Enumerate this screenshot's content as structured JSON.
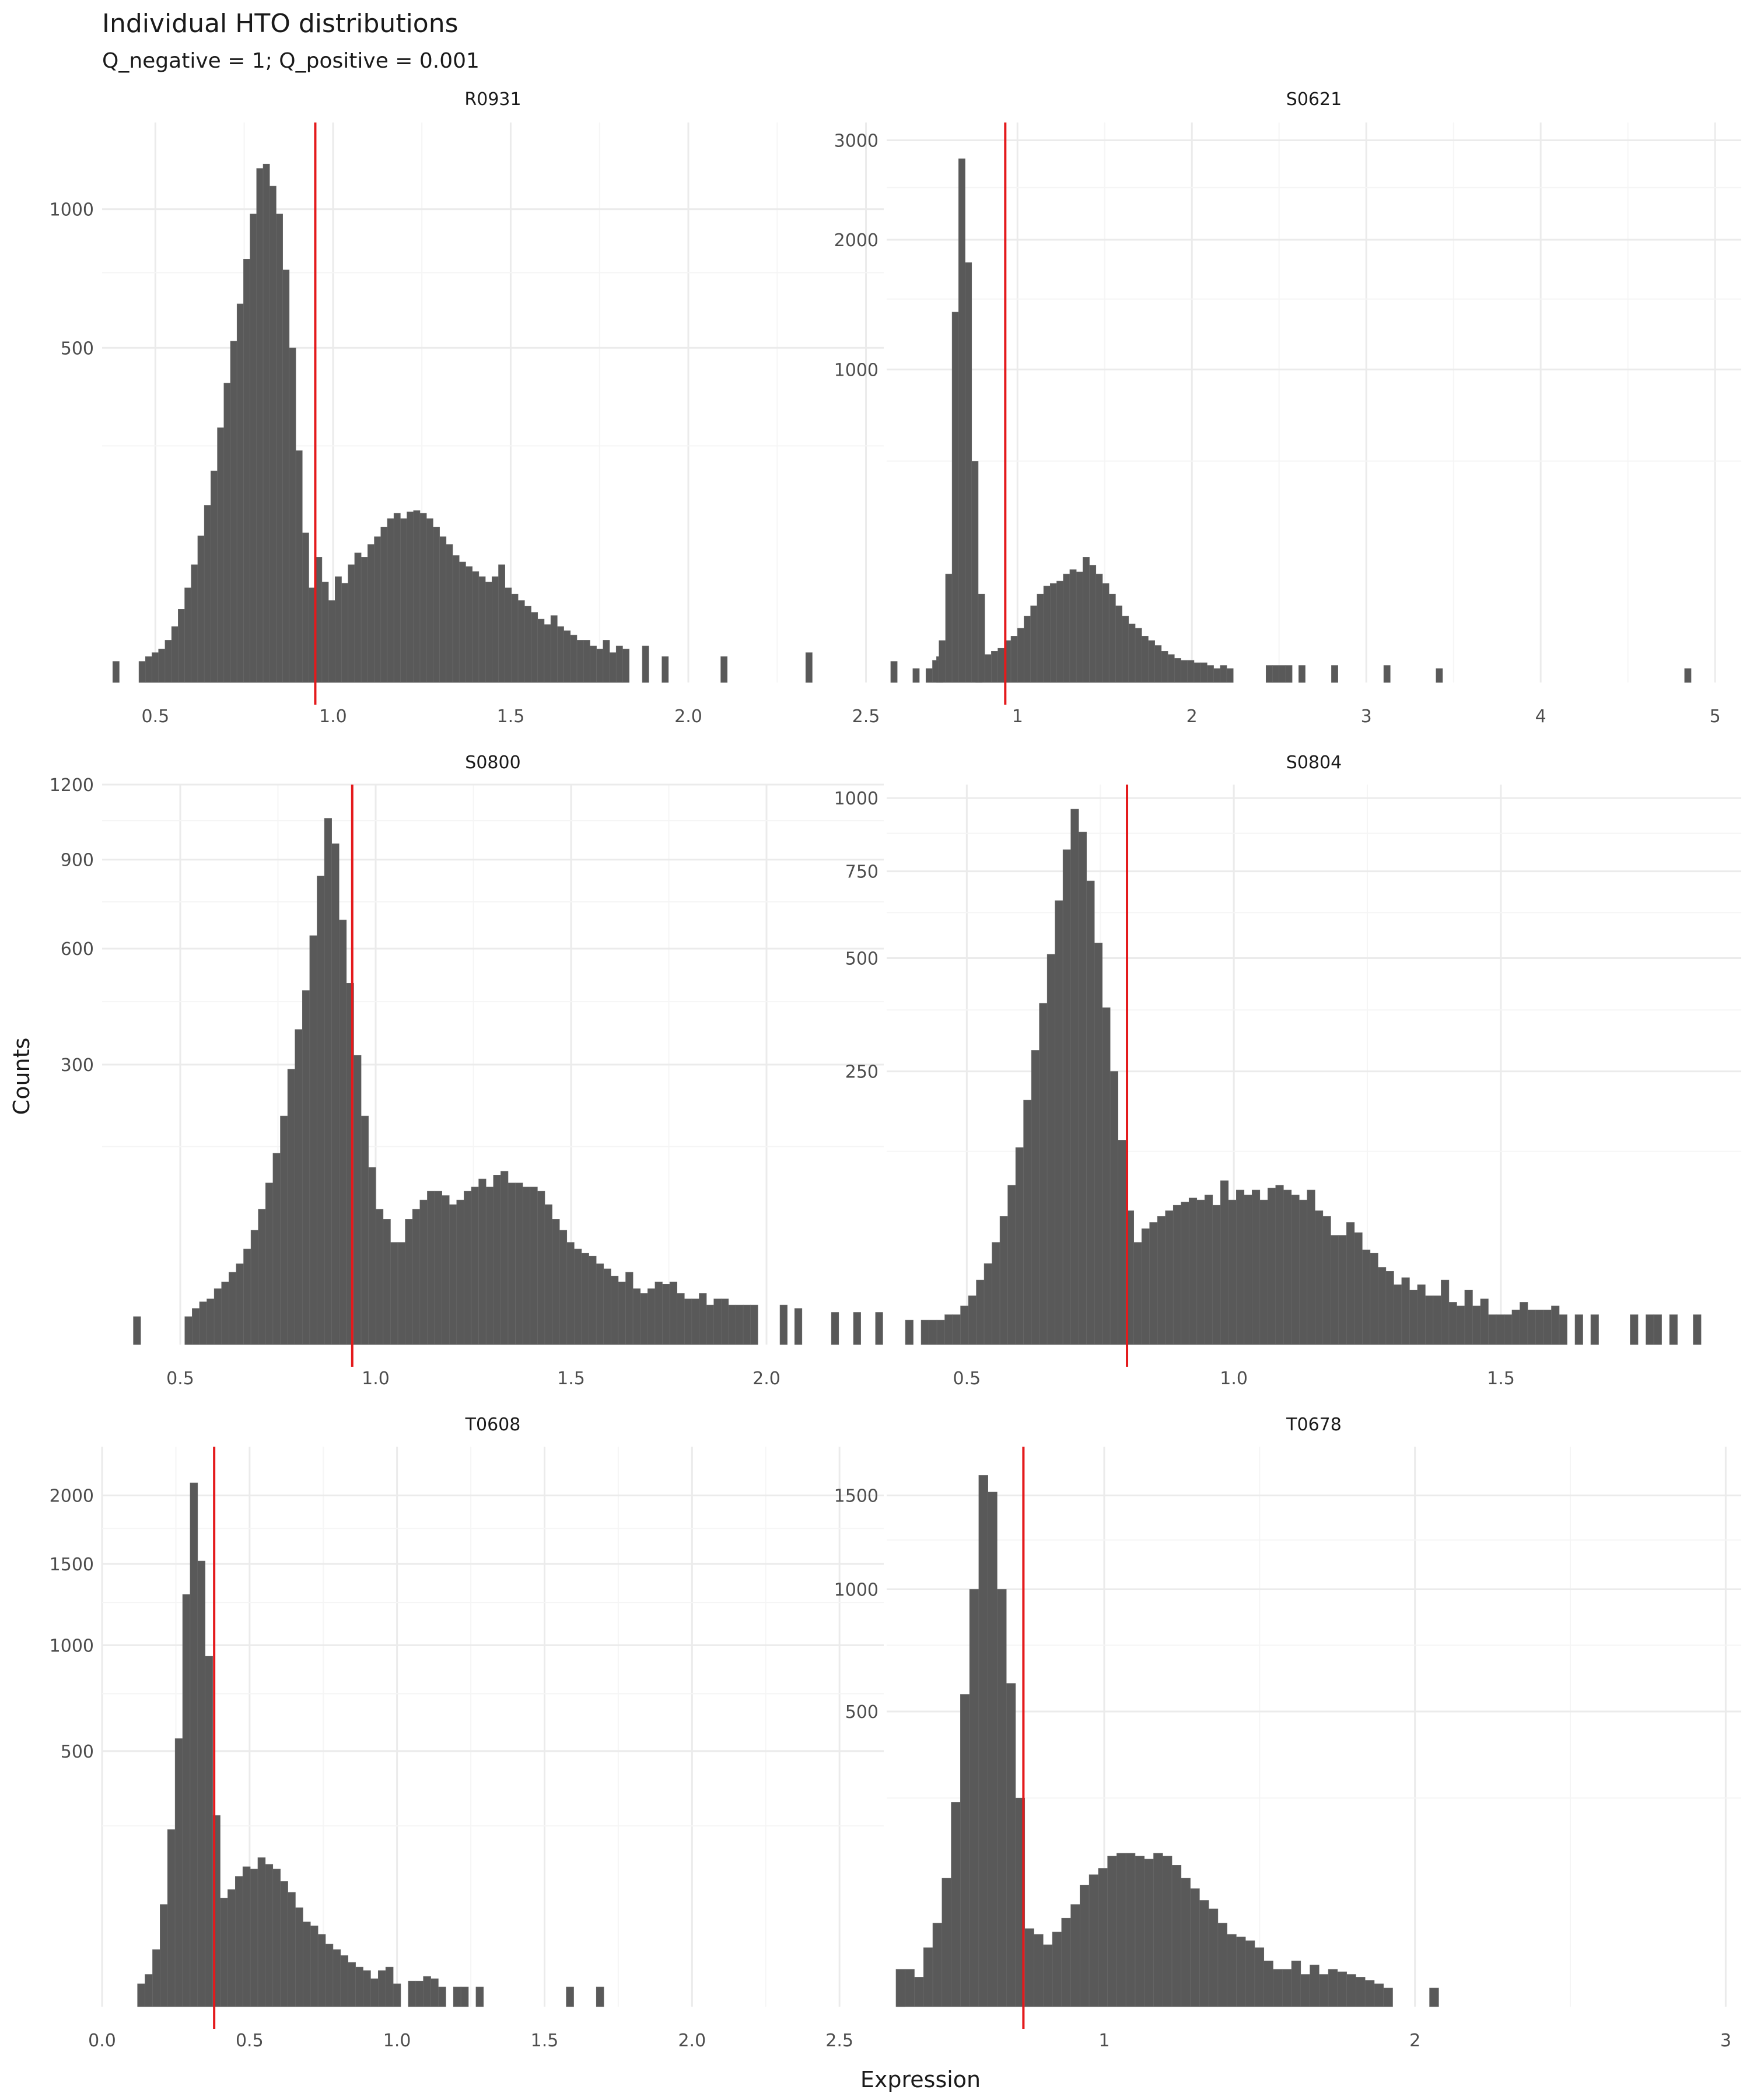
{
  "figure": {
    "title": "Individual HTO distributions",
    "subtitle": "Q_negative = 1; Q_positive = 0.001",
    "xlabel": "Expression",
    "ylabel": "Counts"
  },
  "colors": {
    "bar": "#595959",
    "threshold": "#e41a1c",
    "grid_major": "#ebebeb",
    "grid_minor": "#f5f5f5",
    "text": "#4d4d4d",
    "title": "#1a1a1a"
  },
  "chart_data": [
    {
      "type": "bar",
      "name": "R0931",
      "y_scale": "sqrt",
      "xlim": [
        0.35,
        2.55
      ],
      "ylim": [
        0,
        1400
      ],
      "x_ticks": [
        0.5,
        1.0,
        1.5,
        2.0,
        2.5
      ],
      "x_tick_labels": [
        "0.5",
        "1.0",
        "1.5",
        "2.0",
        "2.5"
      ],
      "y_ticks": [
        500,
        1000
      ],
      "y_tick_labels": [
        "500",
        "1000"
      ],
      "threshold": 0.95,
      "bins": {
        "start": 0.38,
        "width": 0.0184,
        "counts": [
          2,
          0,
          0,
          0,
          2,
          3,
          4,
          5,
          8,
          14,
          24,
          40,
          62,
          96,
          140,
          200,
          290,
          400,
          520,
          640,
          800,
          980,
          1180,
          1200,
          1100,
          980,
          760,
          500,
          240,
          100,
          40,
          70,
          45,
          30,
          50,
          44,
          62,
          75,
          70,
          85,
          95,
          108,
          120,
          128,
          120,
          130,
          132,
          128,
          120,
          108,
          95,
          85,
          72,
          65,
          60,
          55,
          50,
          45,
          50,
          62,
          40,
          35,
          30,
          26,
          22,
          18,
          15,
          20,
          14,
          12,
          10,
          8,
          8,
          6,
          5,
          8,
          4,
          6,
          5,
          0,
          0,
          6,
          0,
          0,
          3,
          0,
          0,
          0,
          0,
          0,
          0,
          0,
          0,
          3,
          0,
          0,
          0,
          0,
          0,
          0,
          0,
          0,
          0,
          0,
          0,
          0,
          4,
          0,
          0,
          0,
          0,
          0,
          0,
          0,
          0,
          0,
          0,
          0,
          0,
          2,
          0,
          0,
          0,
          0,
          0,
          0,
          3,
          0,
          0,
          0,
          0,
          0,
          3
        ]
      }
    },
    {
      "type": "bar",
      "name": "S0621",
      "y_scale": "sqrt",
      "xlim": [
        0.25,
        5.15
      ],
      "ylim": [
        0,
        3200
      ],
      "x_ticks": [
        1,
        2,
        3,
        4,
        5
      ],
      "x_tick_labels": [
        "1",
        "2",
        "3",
        "4",
        "5"
      ],
      "y_ticks": [
        1000,
        2000,
        3000
      ],
      "y_tick_labels": [
        "1000",
        "2000",
        "3000"
      ],
      "threshold": 0.93,
      "bins": {
        "start": 0.4,
        "width": 0.0375,
        "counts": [
          2,
          0,
          2,
          5,
          18,
          120,
          1400,
          2800,
          1800,
          500,
          80,
          8,
          10,
          12,
          18,
          22,
          30,
          45,
          60,
          80,
          95,
          100,
          105,
          120,
          130,
          125,
          160,
          140,
          120,
          100,
          80,
          60,
          45,
          35,
          30,
          22,
          18,
          14,
          10,
          8,
          6,
          5,
          5,
          4,
          4,
          3,
          2,
          3,
          2,
          0,
          0,
          0,
          0,
          0,
          3,
          3,
          3,
          3,
          0,
          3,
          0,
          0,
          0,
          0,
          3,
          0,
          0,
          0,
          0,
          0,
          0,
          0,
          3,
          0,
          0,
          0,
          0,
          0,
          0,
          0,
          2,
          0,
          0,
          0,
          0,
          0,
          0,
          0,
          0,
          0,
          0,
          0,
          0,
          0,
          0,
          0,
          0,
          0,
          0,
          0,
          0,
          0,
          0,
          0,
          0,
          0,
          0,
          0,
          0,
          0,
          0,
          0,
          0,
          0,
          0,
          0,
          0,
          0,
          2
        ]
      }
    },
    {
      "type": "bar",
      "name": "S0800",
      "y_scale": "sqrt",
      "xlim": [
        0.3,
        2.3
      ],
      "ylim": [
        0,
        1200
      ],
      "x_ticks": [
        0.5,
        1.0,
        1.5,
        2.0
      ],
      "x_tick_labels": [
        "0.5",
        "1.0",
        "1.5",
        "2.0"
      ],
      "y_ticks": [
        300,
        600,
        900,
        1200
      ],
      "y_tick_labels": [
        "300",
        "600",
        "900",
        "1200"
      ],
      "threshold": 0.94,
      "bins": {
        "start": 0.38,
        "width": 0.0188,
        "counts": [
          3,
          0,
          0,
          0,
          0,
          0,
          0,
          3,
          5,
          7,
          8,
          12,
          15,
          20,
          25,
          35,
          50,
          70,
          100,
          140,
          200,
          290,
          380,
          480,
          640,
          840,
          1060,
          960,
          690,
          500,
          320,
          200,
          120,
          70,
          60,
          40,
          40,
          60,
          70,
          80,
          90,
          90,
          85,
          75,
          80,
          90,
          95,
          105,
          95,
          110,
          115,
          100,
          100,
          95,
          95,
          90,
          75,
          60,
          50,
          40,
          35,
          32,
          30,
          25,
          22,
          18,
          15,
          20,
          12,
          10,
          12,
          15,
          14,
          15,
          10,
          8,
          8,
          10,
          6,
          8,
          8,
          6,
          6,
          6,
          6,
          0,
          0,
          0,
          6,
          0,
          5,
          0,
          0,
          0,
          0,
          4,
          0,
          0,
          4,
          0,
          0,
          4
        ]
      }
    },
    {
      "type": "bar",
      "name": "S0804",
      "y_scale": "sqrt",
      "xlim": [
        0.35,
        1.95
      ],
      "ylim": [
        0,
        1050
      ],
      "x_ticks": [
        0.5,
        1.0,
        1.5
      ],
      "x_tick_labels": [
        "0.5",
        "1.0",
        "1.5"
      ],
      "y_ticks": [
        250,
        500,
        750,
        1000
      ],
      "y_tick_labels": [
        "250",
        "500",
        "750",
        "1000"
      ],
      "threshold": 0.8,
      "bins": {
        "start": 0.385,
        "width": 0.01475,
        "counts": [
          2,
          0,
          2,
          2,
          2,
          3,
          3,
          5,
          8,
          14,
          22,
          35,
          55,
          85,
          130,
          200,
          290,
          390,
          510,
          660,
          820,
          960,
          880,
          720,
          540,
          380,
          250,
          140,
          60,
          35,
          45,
          50,
          55,
          60,
          65,
          68,
          72,
          70,
          75,
          65,
          90,
          70,
          80,
          75,
          80,
          70,
          82,
          85,
          80,
          75,
          70,
          80,
          60,
          55,
          40,
          40,
          50,
          42,
          30,
          28,
          20,
          18,
          12,
          15,
          10,
          12,
          8,
          8,
          14,
          6,
          5,
          10,
          5,
          7,
          3,
          3,
          3,
          4,
          6,
          4,
          4,
          4,
          5,
          3,
          0,
          3,
          0,
          3,
          0,
          0,
          0,
          0,
          3,
          0,
          3,
          3,
          0,
          3,
          0,
          0,
          3
        ]
      }
    },
    {
      "type": "bar",
      "name": "T0608",
      "y_scale": "sqrt",
      "xlim": [
        0.0,
        2.65
      ],
      "ylim": [
        0,
        2400
      ],
      "x_ticks": [
        0.0,
        0.5,
        1.0,
        1.5,
        2.0,
        2.5
      ],
      "x_tick_labels": [
        "0.0",
        "0.5",
        "1.0",
        "1.5",
        "2.0",
        "2.5"
      ],
      "y_ticks": [
        500,
        1000,
        1500,
        2000
      ],
      "y_tick_labels": [
        "500",
        "1000",
        "1500",
        "2000"
      ],
      "threshold": 0.38,
      "bins": {
        "start": 0.12,
        "width": 0.0255,
        "counts": [
          4,
          8,
          25,
          80,
          240,
          550,
          1300,
          2100,
          1520,
          940,
          280,
          90,
          105,
          130,
          150,
          145,
          170,
          155,
          145,
          120,
          100,
          75,
          55,
          50,
          40,
          30,
          25,
          20,
          15,
          12,
          10,
          6,
          10,
          12,
          4,
          0,
          5,
          5,
          7,
          6,
          3,
          0,
          3,
          3,
          0,
          3,
          0,
          0,
          0,
          0,
          0,
          0,
          0,
          0,
          0,
          0,
          0,
          3,
          0,
          0,
          0,
          3,
          0,
          0,
          0,
          0,
          0,
          0,
          0,
          0,
          0,
          0,
          0,
          0,
          0,
          0,
          0,
          0,
          0,
          0,
          0,
          0,
          0,
          0,
          0,
          0,
          0,
          0,
          0,
          0,
          0,
          0,
          0,
          0,
          0,
          0,
          0,
          0,
          0,
          0,
          0,
          3
        ]
      }
    },
    {
      "type": "bar",
      "name": "T0678",
      "y_scale": "sqrt",
      "xlim": [
        0.3,
        3.05
      ],
      "ylim": [
        0,
        1800
      ],
      "x_ticks": [
        1,
        2,
        3
      ],
      "x_tick_labels": [
        "1",
        "2",
        "3"
      ],
      "y_ticks": [
        500,
        1000,
        1500
      ],
      "y_tick_labels": [
        "500",
        "1000",
        "1500"
      ],
      "threshold": 0.74,
      "bins": {
        "start": 0.33,
        "width": 0.0296,
        "counts": [
          8,
          8,
          5,
          20,
          40,
          95,
          240,
          560,
          1000,
          1620,
          1520,
          1000,
          600,
          250,
          35,
          30,
          22,
          32,
          45,
          60,
          85,
          100,
          110,
          130,
          135,
          135,
          130,
          125,
          135,
          130,
          115,
          95,
          80,
          65,
          55,
          40,
          30,
          28,
          25,
          20,
          12,
          8,
          8,
          12,
          6,
          10,
          6,
          8,
          7,
          6,
          5,
          4,
          3,
          2,
          0,
          0,
          0,
          0,
          2,
          0,
          0,
          0,
          0,
          0,
          0,
          0,
          0,
          0,
          0,
          0,
          0,
          0,
          0,
          0,
          0,
          0,
          0,
          0,
          0,
          0,
          0,
          0,
          0,
          0,
          0,
          0,
          0,
          0,
          0,
          0,
          0,
          0,
          0,
          0,
          0,
          0,
          0,
          0,
          0,
          0,
          0,
          0,
          0,
          2
        ]
      }
    }
  ]
}
